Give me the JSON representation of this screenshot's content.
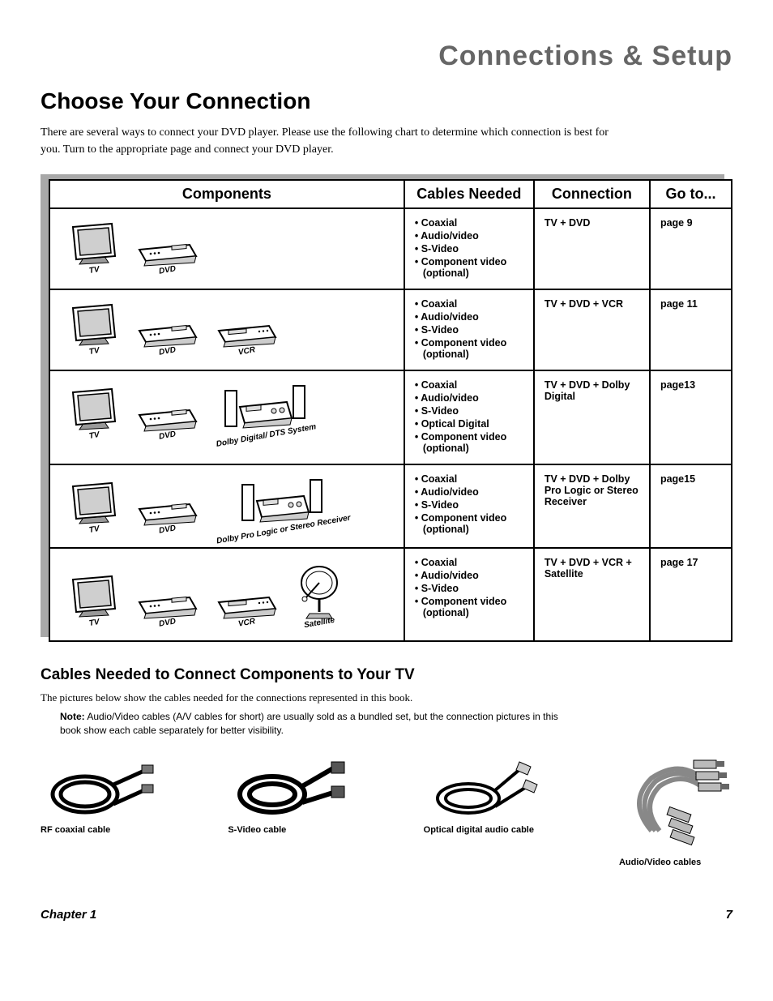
{
  "page": {
    "header": "Connections & Setup",
    "title": "Choose Your Connection",
    "intro": "There are several ways to connect your DVD player. Please use the following chart to determine which connection is best for you. Turn to the appropriate page and connect your DVD player.",
    "chapter": "Chapter 1",
    "pageNumber": "7"
  },
  "table": {
    "headers": {
      "components": "Components",
      "cables": "Cables Needed",
      "connection": "Connection",
      "goto": "Go to..."
    },
    "rows": [
      {
        "devices": [
          "TV",
          "DVD"
        ],
        "cables": [
          "Coaxial",
          "Audio/video",
          "S-Video",
          "Component video (optional)"
        ],
        "connection": "TV + DVD",
        "goto": "page 9"
      },
      {
        "devices": [
          "TV",
          "DVD",
          "VCR"
        ],
        "cables": [
          "Coaxial",
          "Audio/video",
          "S-Video",
          "Component video (optional)"
        ],
        "connection": "TV + DVD + VCR",
        "goto": "page 11"
      },
      {
        "devices": [
          "TV",
          "DVD",
          "Dolby Digital/ DTS System"
        ],
        "cables": [
          "Coaxial",
          "Audio/video",
          "S-Video",
          "Optical Digital",
          "Component video (optional)"
        ],
        "connection": "TV + DVD + Dolby Digital",
        "goto": "page13"
      },
      {
        "devices": [
          "TV",
          "DVD",
          "Dolby Pro Logic or Stereo Receiver"
        ],
        "cables": [
          "Coaxial",
          "Audio/video",
          "S-Video",
          "Component video (optional)"
        ],
        "connection": "TV + DVD + Dolby Pro Logic or Stereo Receiver",
        "goto": "page15"
      },
      {
        "devices": [
          "TV",
          "DVD",
          "VCR",
          "Satellite"
        ],
        "cables": [
          "Coaxial",
          "Audio/video",
          "S-Video",
          "Component video (optional)"
        ],
        "connection": "TV + DVD + VCR + Satellite",
        "goto": "page 17"
      }
    ]
  },
  "cablesSection": {
    "heading": "Cables Needed to Connect Components to Your TV",
    "text": "The pictures below show the cables needed for the connections represented in this book.",
    "noteLabel": "Note:",
    "noteText": " Audio/Video cables (A/V cables for short) are usually sold as a bundled set, but the connection pictures in this book show each cable separately for better visibility.",
    "items": [
      {
        "label": "RF coaxial cable"
      },
      {
        "label": "S-Video cable"
      },
      {
        "label": "Optical digital audio cable"
      },
      {
        "label": "Audio/Video cables"
      }
    ]
  },
  "style": {
    "headerColor": "#666666",
    "borderColor": "#000000",
    "shadowColor": "#a8a8a8",
    "bodyFont": "Georgia, serif",
    "sansFont": "Arial, Helvetica, sans-serif",
    "headerFont": "'Trebuchet MS', Arial, sans-serif"
  }
}
